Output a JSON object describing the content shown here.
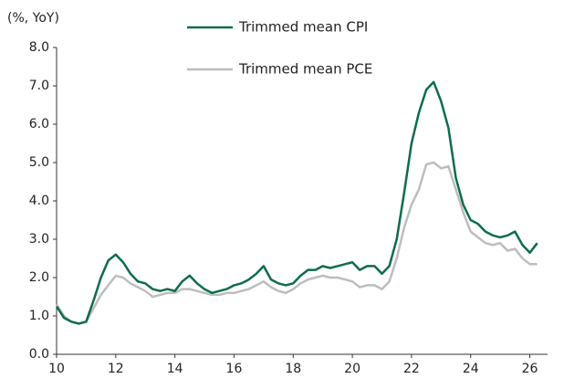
{
  "chart_data": {
    "type": "line",
    "y_label": "(%, YoY)",
    "x": [
      10.0,
      10.25,
      10.5,
      10.75,
      11.0,
      11.25,
      11.5,
      11.75,
      12.0,
      12.25,
      12.5,
      12.75,
      13.0,
      13.25,
      13.5,
      13.75,
      14.0,
      14.25,
      14.5,
      14.75,
      15.0,
      15.25,
      15.5,
      15.75,
      16.0,
      16.25,
      16.5,
      16.75,
      17.0,
      17.25,
      17.5,
      17.75,
      18.0,
      18.25,
      18.5,
      18.75,
      19.0,
      19.25,
      19.5,
      19.75,
      20.0,
      20.25,
      20.5,
      20.75,
      21.0,
      21.25,
      21.5,
      21.75,
      22.0,
      22.25,
      22.5,
      22.75,
      23.0,
      23.25,
      23.5,
      23.75,
      24.0,
      24.25,
      24.5,
      24.75,
      25.0,
      25.25,
      25.5,
      25.75,
      26.0,
      26.25
    ],
    "series": [
      {
        "name": "Trimmed mean CPI",
        "color": "#0d6b50",
        "values": [
          1.25,
          0.95,
          0.85,
          0.8,
          0.85,
          1.4,
          2.0,
          2.45,
          2.6,
          2.4,
          2.1,
          1.9,
          1.85,
          1.7,
          1.65,
          1.7,
          1.65,
          1.9,
          2.05,
          1.85,
          1.7,
          1.6,
          1.65,
          1.7,
          1.8,
          1.85,
          1.95,
          2.1,
          2.3,
          1.95,
          1.85,
          1.8,
          1.85,
          2.05,
          2.2,
          2.2,
          2.3,
          2.25,
          2.3,
          2.35,
          2.4,
          2.2,
          2.3,
          2.3,
          2.1,
          2.3,
          3.0,
          4.2,
          5.5,
          6.3,
          6.9,
          7.1,
          6.6,
          5.9,
          4.6,
          3.9,
          3.5,
          3.4,
          3.2,
          3.1,
          3.05,
          3.1,
          3.2,
          2.85,
          2.65,
          2.9
        ]
      },
      {
        "name": "Trimmed mean PCE",
        "color": "#bdbdbd",
        "values": [
          1.3,
          1.0,
          0.85,
          0.8,
          0.85,
          1.2,
          1.55,
          1.8,
          2.05,
          2.0,
          1.85,
          1.75,
          1.65,
          1.5,
          1.55,
          1.6,
          1.6,
          1.7,
          1.7,
          1.65,
          1.6,
          1.55,
          1.55,
          1.6,
          1.6,
          1.65,
          1.7,
          1.8,
          1.9,
          1.75,
          1.65,
          1.6,
          1.7,
          1.85,
          1.95,
          2.0,
          2.05,
          2.0,
          2.0,
          1.95,
          1.9,
          1.75,
          1.8,
          1.8,
          1.7,
          1.9,
          2.5,
          3.3,
          3.9,
          4.3,
          4.95,
          5.0,
          4.85,
          4.9,
          4.3,
          3.7,
          3.2,
          3.05,
          2.9,
          2.85,
          2.9,
          2.7,
          2.75,
          2.5,
          2.35,
          2.35
        ]
      }
    ],
    "xlim": [
      10,
      26.6
    ],
    "xticks": [
      10,
      12,
      14,
      16,
      18,
      20,
      22,
      24,
      26
    ],
    "ylim": [
      0,
      8
    ],
    "yticks": [
      {
        "value": 0,
        "label": "0.0"
      },
      {
        "value": 1,
        "label": "1.0"
      },
      {
        "value": 2,
        "label": "2.0"
      },
      {
        "value": 3,
        "label": "3.0"
      },
      {
        "value": 4,
        "label": "4.0"
      },
      {
        "value": 5,
        "label": "5.0"
      },
      {
        "value": 6,
        "label": "6.0"
      },
      {
        "value": 7,
        "label": "7.0"
      },
      {
        "value": 8,
        "label": "8.0"
      }
    ],
    "grid": false
  }
}
